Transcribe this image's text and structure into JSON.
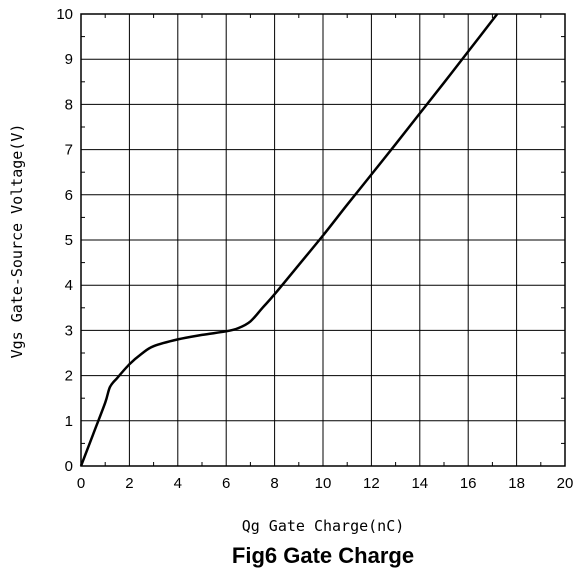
{
  "chart_data": {
    "type": "line",
    "title": "Fig6 Gate Charge",
    "xlabel": "Qg Gate Charge(nC)",
    "ylabel": "Vgs Gate-Source Voltage(V)",
    "xlim": [
      0,
      20
    ],
    "ylim": [
      0,
      10
    ],
    "xticks": [
      "0",
      "2",
      "4",
      "6",
      "8",
      "10",
      "12",
      "14",
      "16",
      "18",
      "20"
    ],
    "yticks": [
      "0",
      "1",
      "2",
      "3",
      "4",
      "5",
      "6",
      "7",
      "8",
      "9",
      "10"
    ],
    "grid": true,
    "series": [
      {
        "x": [
          0,
          0.5,
          1.0,
          1.2,
          1.5,
          2.0,
          2.5,
          3.0,
          4.0,
          5.0,
          6.0,
          6.5,
          7.0,
          7.5,
          8.0,
          9.0,
          10.0,
          11.0,
          12.0,
          13.0,
          14.0,
          15.0,
          16.0,
          17.2
        ],
        "y": [
          0,
          0.7,
          1.4,
          1.75,
          1.95,
          2.25,
          2.48,
          2.65,
          2.8,
          2.9,
          2.98,
          3.05,
          3.2,
          3.5,
          3.8,
          4.45,
          5.1,
          5.78,
          6.45,
          7.12,
          7.8,
          8.48,
          9.17,
          10.0
        ],
        "color": "#000000"
      }
    ]
  }
}
